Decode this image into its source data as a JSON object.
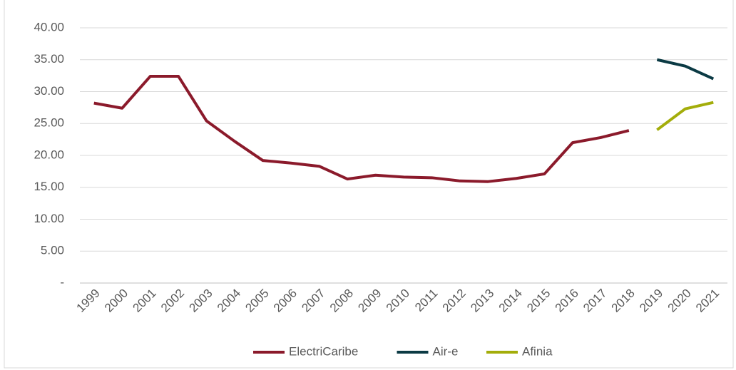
{
  "chart_data": {
    "type": "line",
    "categories": [
      "1999",
      "2000",
      "2001",
      "2002",
      "2003",
      "2004",
      "2005",
      "2006",
      "2007",
      "2008",
      "2009",
      "2010",
      "2011",
      "2012",
      "2013",
      "2014",
      "2015",
      "2016",
      "2017",
      "2018",
      "2019",
      "2020",
      "2021"
    ],
    "series": [
      {
        "name": "ElectriCaribe",
        "color": "#8b1a2b",
        "values": [
          28.2,
          27.4,
          32.4,
          32.4,
          25.4,
          22.2,
          19.2,
          18.8,
          18.3,
          16.3,
          16.9,
          16.6,
          16.5,
          16.0,
          15.9,
          16.4,
          17.1,
          22.0,
          22.8,
          23.9,
          null,
          null,
          null
        ]
      },
      {
        "name": "Air-e",
        "color": "#0b3a44",
        "values": [
          null,
          null,
          null,
          null,
          null,
          null,
          null,
          null,
          null,
          null,
          null,
          null,
          null,
          null,
          null,
          null,
          null,
          null,
          null,
          null,
          35.0,
          34.0,
          32.0
        ]
      },
      {
        "name": "Afinia",
        "color": "#a3ad0a",
        "values": [
          null,
          null,
          null,
          null,
          null,
          null,
          null,
          null,
          null,
          null,
          null,
          null,
          null,
          null,
          null,
          null,
          null,
          null,
          null,
          null,
          24.0,
          27.3,
          28.3
        ]
      }
    ],
    "ylim": [
      0,
      40
    ],
    "yticks": [
      {
        "value": 0,
        "label": "-"
      },
      {
        "value": 5,
        "label": "5.00"
      },
      {
        "value": 10,
        "label": "10.00"
      },
      {
        "value": 15,
        "label": "15.00"
      },
      {
        "value": 20,
        "label": "20.00"
      },
      {
        "value": 25,
        "label": "25.00"
      },
      {
        "value": 30,
        "label": "30.00"
      },
      {
        "value": 35,
        "label": "35.00"
      },
      {
        "value": 40,
        "label": "40.00"
      }
    ],
    "grid": true,
    "legend": "bottom"
  }
}
